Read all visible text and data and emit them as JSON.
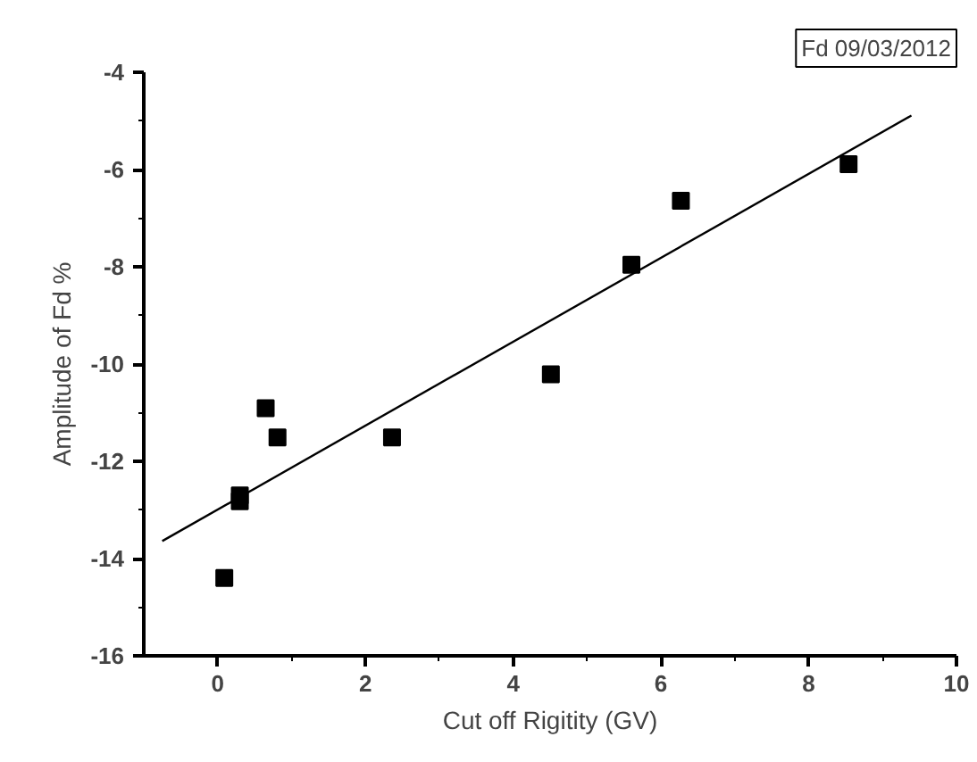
{
  "chart_data": {
    "type": "scatter",
    "xlabel": "Cut off Rigitity (GV)",
    "ylabel": "Amplitude of Fd %",
    "annotations": [
      "Fd 09/03/2012"
    ],
    "xlim": [
      -1,
      10
    ],
    "ylim": [
      -16,
      -4
    ],
    "xticks": [
      0,
      2,
      4,
      6,
      8,
      10
    ],
    "yticks": [
      -16,
      -14,
      -12,
      -10,
      -8,
      -6,
      -4
    ],
    "grid": false,
    "series": [
      {
        "marker": "square",
        "color": "#000000",
        "x": [
          0.09,
          0.3,
          0.3,
          0.65,
          0.81,
          2.36,
          4.51,
          5.6,
          6.27,
          8.54
        ],
        "values": [
          -14.4,
          -12.7,
          -12.82,
          -10.91,
          -11.51,
          -11.51,
          -10.21,
          -7.96,
          -6.64,
          -5.89
        ]
      },
      {
        "type": "line",
        "color": "#000000",
        "line_style": "solid",
        "x": [
          -0.75,
          9.39
        ],
        "values": [
          -13.64,
          -4.89
        ]
      }
    ]
  }
}
